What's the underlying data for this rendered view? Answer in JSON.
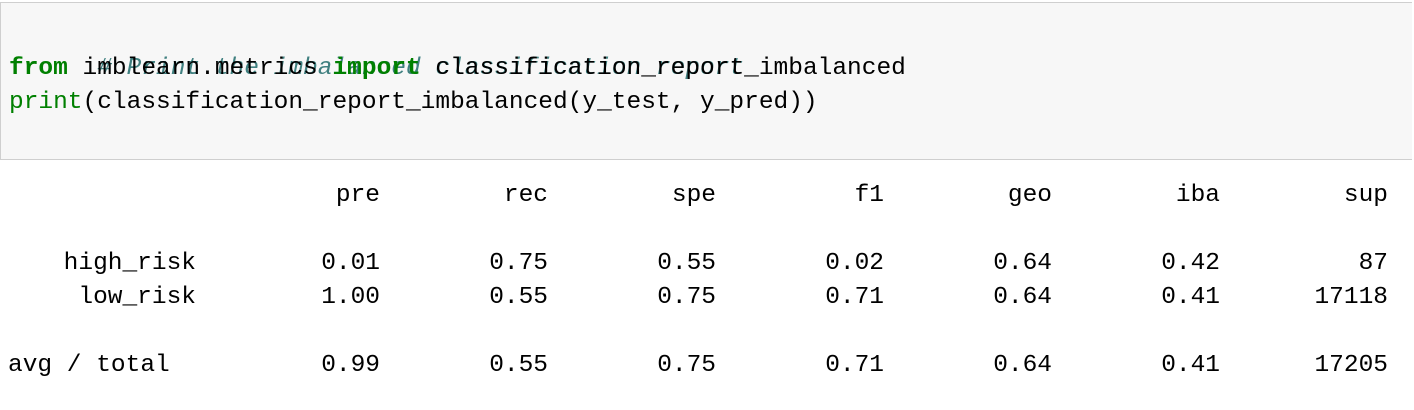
{
  "code": {
    "comment": "# Print the imbalanced classification report",
    "line2": {
      "kw_from": "from",
      "module": " imblearn.metrics ",
      "kw_import": "import",
      "name": " classification_report_imbalanced"
    },
    "line3": {
      "builtin": "print",
      "rest": "(classification_report_imbalanced(y_test, y_pred))"
    }
  },
  "report": {
    "headers": [
      "pre",
      "rec",
      "spe",
      "f1",
      "geo",
      "iba",
      "sup"
    ],
    "rows": [
      {
        "label": "high_risk",
        "values": [
          "0.01",
          "0.75",
          "0.55",
          "0.02",
          "0.64",
          "0.42",
          "87"
        ]
      },
      {
        "label": "low_risk",
        "values": [
          "1.00",
          "0.55",
          "0.75",
          "0.71",
          "0.64",
          "0.41",
          "17118"
        ]
      }
    ],
    "total": {
      "label": "avg / total",
      "values": [
        "0.99",
        "0.55",
        "0.75",
        "0.71",
        "0.64",
        "0.41",
        "17205"
      ]
    }
  },
  "colors": {
    "comment": "#408080",
    "keyword": "#008000",
    "cell_background": "#f7f7f7"
  }
}
